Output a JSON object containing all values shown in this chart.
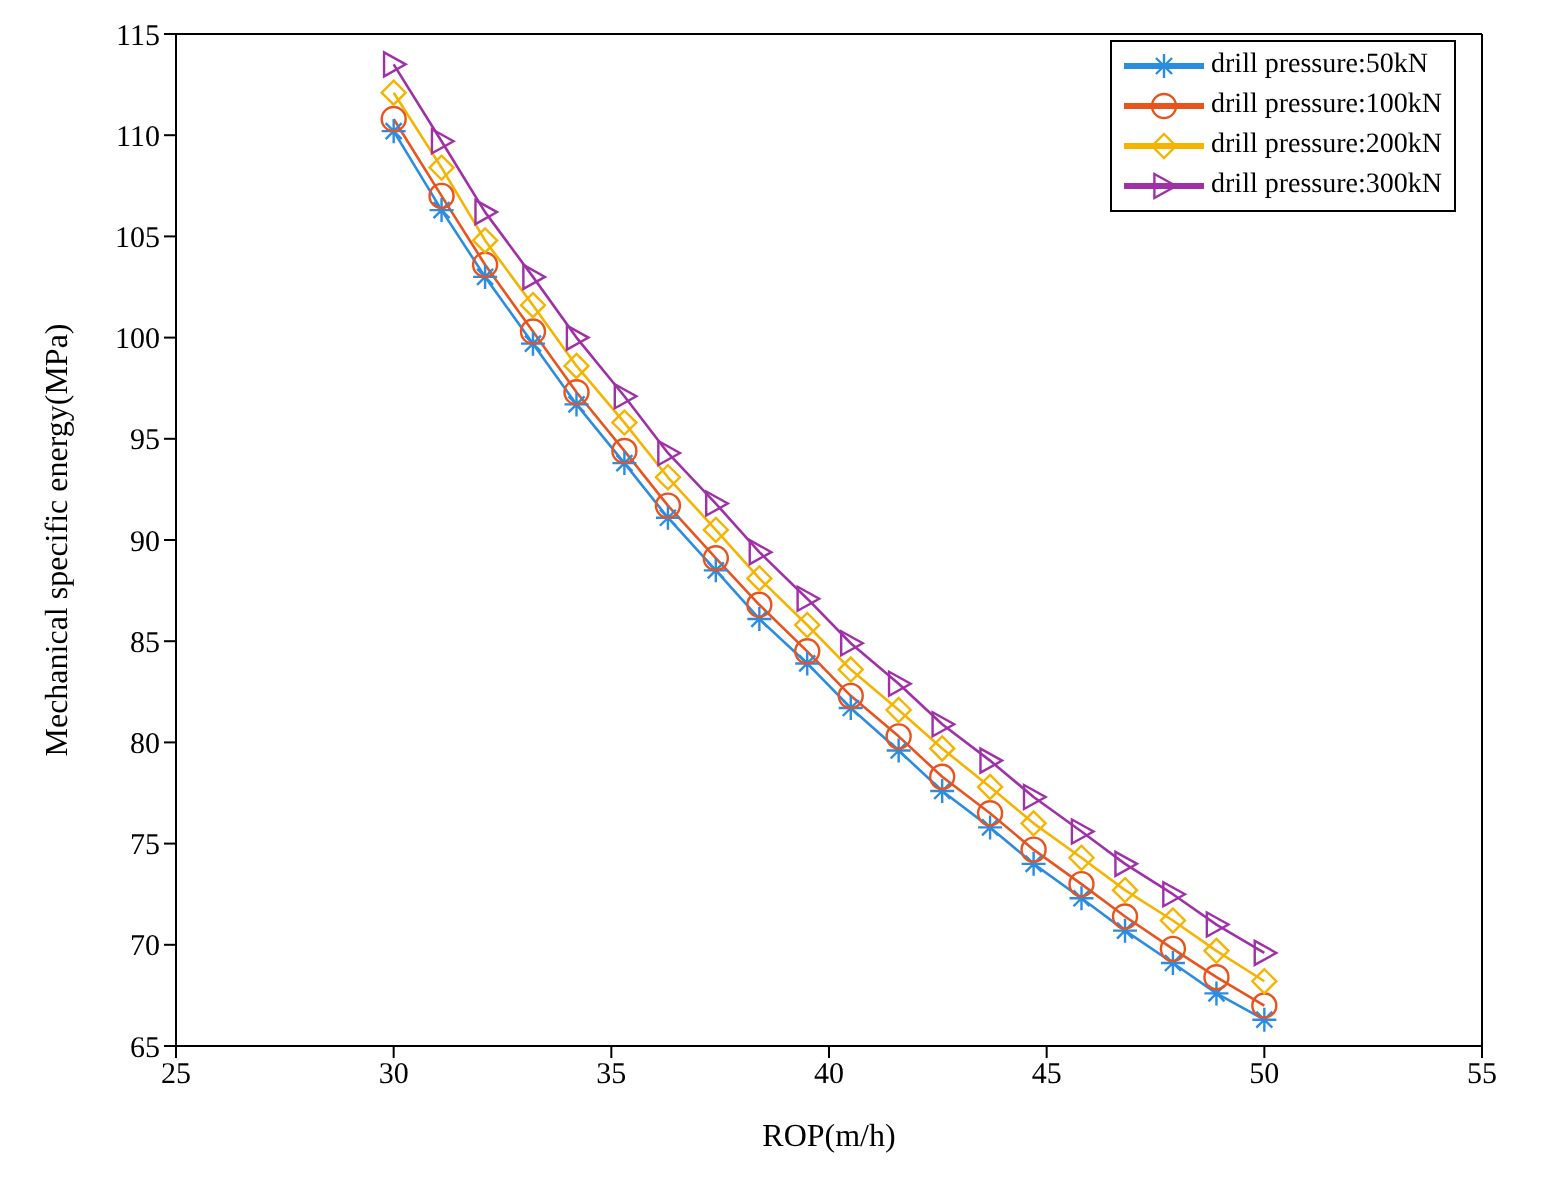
{
  "chart_data": {
    "type": "line",
    "xlabel": "ROP(m/h)",
    "ylabel": "Mechanical specific energy(MPa)",
    "x": [
      30,
      31.1,
      32.1,
      33.2,
      34.2,
      35.3,
      36.3,
      37.4,
      38.4,
      39.5,
      40.5,
      41.6,
      42.6,
      43.7,
      44.7,
      45.8,
      46.8,
      47.9,
      48.9,
      50
    ],
    "xlim": [
      25,
      55
    ],
    "xticks": [
      25,
      30,
      35,
      40,
      45,
      50,
      55
    ],
    "ylim": [
      65,
      115
    ],
    "yticks": [
      65,
      70,
      75,
      80,
      85,
      90,
      95,
      100,
      105,
      110,
      115
    ],
    "legend": "top right",
    "line_style": "solid",
    "series": [
      {
        "name": "drill pressure:50kN",
        "color": "#2b8ce0",
        "marker": "cross",
        "values": [
          110.2,
          106.3,
          103.0,
          99.7,
          96.7,
          93.8,
          91.1,
          88.5,
          86.1,
          83.9,
          81.7,
          79.6,
          77.6,
          75.8,
          74.0,
          72.3,
          70.7,
          69.1,
          67.6,
          66.3
        ]
      },
      {
        "name": "drill pressure:100kN",
        "color": "#e8531e",
        "marker": "circle",
        "values": [
          110.8,
          107.0,
          103.6,
          100.3,
          97.3,
          94.4,
          91.7,
          89.1,
          86.8,
          84.5,
          82.3,
          80.3,
          78.3,
          76.5,
          74.7,
          73.0,
          71.4,
          69.8,
          68.4,
          67.0
        ]
      },
      {
        "name": "drill pressure:200kN",
        "color": "#f5b400",
        "marker": "diamond",
        "values": [
          112.1,
          108.4,
          104.8,
          101.6,
          98.6,
          95.8,
          93.1,
          90.5,
          88.1,
          85.8,
          83.6,
          81.6,
          79.7,
          77.8,
          76.0,
          74.3,
          72.7,
          71.2,
          69.7,
          68.2
        ]
      },
      {
        "name": "drill pressure:300kN",
        "color": "#a030a8",
        "marker": "triangle",
        "values": [
          113.5,
          109.7,
          106.2,
          103.0,
          100.0,
          97.1,
          94.3,
          91.8,
          89.4,
          87.1,
          84.9,
          82.9,
          80.9,
          79.1,
          77.3,
          75.6,
          74.0,
          72.5,
          71.0,
          69.6
        ]
      }
    ]
  }
}
